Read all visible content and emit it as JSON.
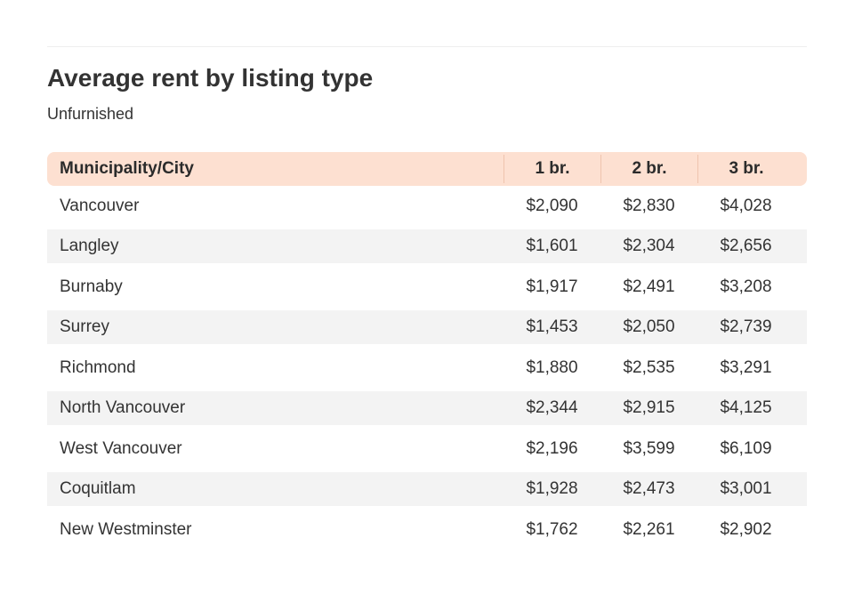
{
  "title": "Average rent by listing type",
  "subtitle": "Unfurnished",
  "table": {
    "columns": [
      "Municipality/City",
      "1 br.",
      "2 br.",
      "3 br."
    ],
    "rows": [
      [
        "Vancouver",
        "$2,090",
        "$2,830",
        "$4,028"
      ],
      [
        "Langley",
        "$1,601",
        "$2,304",
        "$2,656"
      ],
      [
        "Burnaby",
        "$1,917",
        "$2,491",
        "$3,208"
      ],
      [
        "Surrey",
        "$1,453",
        "$2,050",
        "$2,739"
      ],
      [
        "Richmond",
        "$1,880",
        "$2,535",
        "$3,291"
      ],
      [
        "North Vancouver",
        "$2,344",
        "$2,915",
        "$4,125"
      ],
      [
        "West Vancouver",
        "$2,196",
        "$3,599",
        "$6,109"
      ],
      [
        "Coquitlam",
        "$1,928",
        "$2,473",
        "$3,001"
      ],
      [
        "New Westminster",
        "$1,762",
        "$2,261",
        "$2,902"
      ]
    ]
  },
  "colors": {
    "header_background": "#fde0d1",
    "stripe_background": "#f3f3f3",
    "text": "#333333"
  }
}
